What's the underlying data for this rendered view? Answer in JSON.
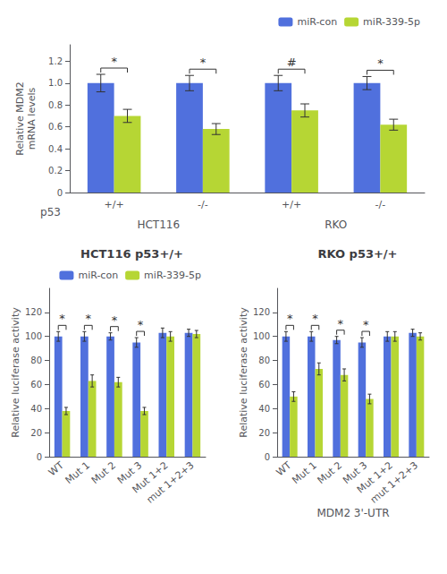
{
  "chart_data": [
    {
      "type": "bar",
      "categories": [
        "+/+",
        "-/-",
        "+/+",
        "-/-"
      ],
      "groups": [
        "HCT116",
        "RKO"
      ],
      "xlabel": "p53",
      "ylabel": "Relative MDM2\nmRNA levels",
      "series": [
        {
          "name": "miR-con",
          "values": [
            1.0,
            1.0,
            1.0,
            1.0
          ],
          "errors": [
            0.08,
            0.07,
            0.07,
            0.06
          ]
        },
        {
          "name": "miR-339-5p",
          "values": [
            0.7,
            0.58,
            0.75,
            0.62
          ],
          "errors": [
            0.06,
            0.05,
            0.06,
            0.05
          ]
        }
      ],
      "annotations": [
        "*",
        "*",
        "#",
        "*"
      ],
      "ylim": [
        0,
        1.35
      ],
      "yticks": [
        0,
        0.2,
        0.4,
        0.6,
        0.8,
        {
          "value": 1.0,
          "label": "1.0"
        },
        1.2
      ],
      "grid": false,
      "legend": "upper right"
    },
    {
      "type": "bar",
      "title": "HCT116 p53+/+",
      "categories": [
        "WT",
        "Mut 1",
        "Mut 2",
        "Mut 3",
        "Mut 1+2",
        "mut 1+2+3"
      ],
      "ylabel": "Relative luciferase activity",
      "series": [
        {
          "name": "miR-con",
          "values": [
            100,
            100,
            100,
            95,
            103,
            103
          ],
          "errors": [
            4,
            4,
            3,
            4,
            4,
            3
          ]
        },
        {
          "name": "miR-339-5p",
          "values": [
            38,
            63,
            62,
            38,
            100,
            102
          ],
          "errors": [
            3,
            5,
            4,
            3,
            4,
            3
          ]
        }
      ],
      "annotations": [
        "*",
        "*",
        "*",
        "*",
        null,
        null
      ],
      "ylim": [
        0,
        140
      ],
      "yticks": [
        0,
        20,
        40,
        60,
        80,
        100,
        120
      ],
      "grid": false,
      "legend": "upper right"
    },
    {
      "type": "bar",
      "title": "RKO p53+/+",
      "categories": [
        "WT",
        "Mut 1",
        "Mut 2",
        "Mut 3",
        "Mut 1+2",
        "mut 1+2+3"
      ],
      "xlabel": "MDM2 3'-UTR",
      "ylabel": "Relative luciferase activity",
      "series": [
        {
          "name": "miR-con",
          "values": [
            100,
            100,
            97,
            95,
            100,
            103
          ],
          "errors": [
            4,
            4,
            3,
            4,
            4,
            3
          ]
        },
        {
          "name": "miR-339-5p",
          "values": [
            50,
            73,
            68,
            48,
            100,
            100
          ],
          "errors": [
            4,
            5,
            5,
            4,
            4,
            3
          ]
        }
      ],
      "annotations": [
        "*",
        "*",
        "*",
        "*",
        null,
        null
      ],
      "ylim": [
        0,
        140
      ],
      "yticks": [
        0,
        20,
        40,
        60,
        80,
        100,
        120
      ],
      "grid": false
    }
  ]
}
